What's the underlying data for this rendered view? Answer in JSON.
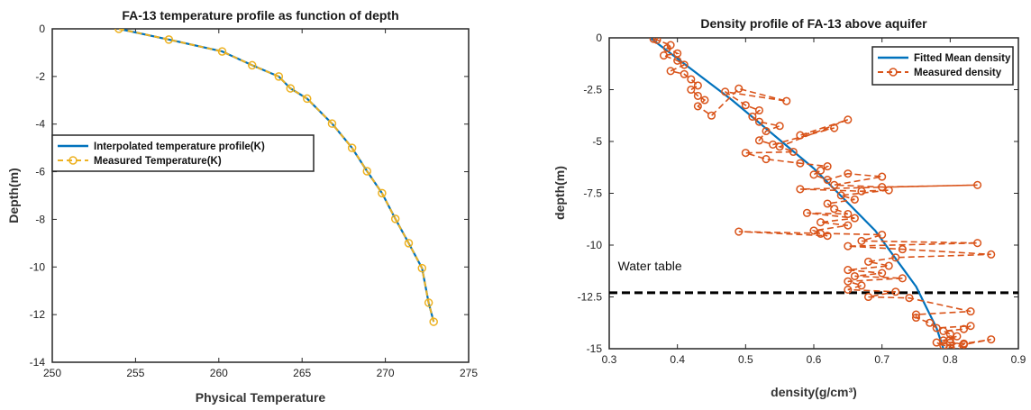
{
  "chart_data": [
    {
      "type": "line",
      "title": "FA-13 temperature profile as function of depth",
      "xlabel": "Physical Temperature",
      "ylabel": "Depth(m)",
      "xlim": [
        250,
        275
      ],
      "ylim": [
        -14,
        0
      ],
      "xticks": [
        250,
        255,
        260,
        265,
        270,
        275
      ],
      "yticks": [
        0,
        -2,
        -4,
        -6,
        -8,
        -10,
        -12,
        -14
      ],
      "legend_position": "middle-left",
      "series": [
        {
          "name": "Interpolated temperature profile(K)",
          "color": "#0072BD",
          "style": "solid",
          "x": [
            254.0,
            257.0,
            260.2,
            262.0,
            263.6,
            264.3,
            265.3,
            266.8,
            268.0,
            268.9,
            269.8,
            270.6,
            271.4,
            272.2,
            272.6,
            272.9
          ],
          "y": [
            0,
            -0.45,
            -0.95,
            -1.53,
            -2.0,
            -2.5,
            -2.93,
            -3.98,
            -5.0,
            -5.98,
            -6.9,
            -7.98,
            -9.0,
            -10.05,
            -11.5,
            -12.3
          ]
        },
        {
          "name": "Measured Temperature(K)",
          "color": "#EDB120",
          "style": "dashed-circle",
          "x": [
            254.0,
            257.0,
            260.2,
            262.0,
            263.6,
            264.3,
            265.3,
            266.8,
            268.0,
            268.9,
            269.8,
            270.6,
            271.4,
            272.2,
            272.6,
            272.9
          ],
          "y": [
            0,
            -0.45,
            -0.95,
            -1.53,
            -2.0,
            -2.5,
            -2.93,
            -3.98,
            -5.0,
            -5.98,
            -6.9,
            -7.98,
            -9.0,
            -10.05,
            -11.5,
            -12.3
          ]
        }
      ]
    },
    {
      "type": "line",
      "title": "Density profile of FA-13 above aquifer",
      "xlabel": "density(g/cm³)",
      "ylabel": "depth(m)",
      "xlim": [
        0.3,
        0.9
      ],
      "ylim": [
        -15,
        0
      ],
      "xticks": [
        0.3,
        0.4,
        0.5,
        0.6,
        0.7,
        0.8,
        0.9
      ],
      "yticks": [
        0,
        -2.5,
        -5,
        -7.5,
        -10,
        -12.5,
        -15
      ],
      "ytick_labels": [
        "0",
        "-2.5",
        "-5",
        "-7.5",
        "-10",
        "-12.5",
        "-15"
      ],
      "legend_position": "top-right",
      "annotations": [
        {
          "text": "Water table",
          "x": 0.31,
          "y": -11.0
        }
      ],
      "water_table_depth": -12.3,
      "series": [
        {
          "name": "Fitted Mean density",
          "color": "#0072BD",
          "style": "solid",
          "x": [
            0.36,
            0.4,
            0.44,
            0.48,
            0.52,
            0.56,
            0.6,
            0.63,
            0.66,
            0.69,
            0.71,
            0.73,
            0.75,
            0.765,
            0.78,
            0.79
          ],
          "y": [
            0,
            -1.0,
            -2.0,
            -3.0,
            -4.1,
            -5.2,
            -6.3,
            -7.3,
            -8.3,
            -9.3,
            -10.2,
            -11.1,
            -12.0,
            -13.0,
            -14.0,
            -15.0
          ]
        },
        {
          "name": "Measured density",
          "color": "#D95319",
          "style": "dashed-circle",
          "x": [
            0.365,
            0.37,
            0.39,
            0.385,
            0.4,
            0.38,
            0.4,
            0.41,
            0.39,
            0.41,
            0.42,
            0.43,
            0.42,
            0.43,
            0.44,
            0.43,
            0.45,
            0.49,
            0.56,
            0.47,
            0.5,
            0.52,
            0.51,
            0.52,
            0.55,
            0.53,
            0.52,
            0.54,
            0.63,
            0.58,
            0.65,
            0.55,
            0.57,
            0.5,
            0.53,
            0.58,
            0.62,
            0.61,
            0.6,
            0.62,
            0.65,
            0.7,
            0.63,
            0.7,
            0.84,
            0.58,
            0.67,
            0.71,
            0.64,
            0.66,
            0.62,
            0.63,
            0.65,
            0.59,
            0.66,
            0.61,
            0.65,
            0.6,
            0.61,
            0.62,
            0.49,
            0.7,
            0.67,
            0.84,
            0.65,
            0.73,
            0.86,
            0.72,
            0.68,
            0.71,
            0.65,
            0.7,
            0.66,
            0.73,
            0.65,
            0.67,
            0.65,
            0.72,
            0.68,
            0.74,
            0.83,
            0.75,
            0.75,
            0.77,
            0.78,
            0.83,
            0.82,
            0.79,
            0.8,
            0.8,
            0.81,
            0.79,
            0.8,
            0.82,
            0.86,
            0.82,
            0.81,
            0.8,
            0.78,
            0.79
          ],
          "y": [
            -0.05,
            -0.1,
            -0.35,
            -0.5,
            -0.75,
            -0.85,
            -1.1,
            -1.3,
            -1.6,
            -1.75,
            -2.0,
            -2.3,
            -2.5,
            -2.8,
            -3.0,
            -3.3,
            -3.75,
            -2.45,
            -3.05,
            -2.6,
            -3.25,
            -3.5,
            -3.8,
            -4.05,
            -4.25,
            -4.5,
            -4.95,
            -5.15,
            -4.35,
            -4.7,
            -3.95,
            -5.25,
            -5.5,
            -5.55,
            -5.85,
            -6.05,
            -6.2,
            -6.4,
            -6.6,
            -6.85,
            -6.55,
            -6.7,
            -7.1,
            -7.2,
            -7.1,
            -7.3,
            -7.4,
            -7.35,
            -7.6,
            -7.8,
            -8.0,
            -8.25,
            -8.5,
            -8.45,
            -8.7,
            -8.9,
            -9.05,
            -9.3,
            -9.45,
            -9.55,
            -9.35,
            -9.5,
            -9.8,
            -9.9,
            -10.05,
            -10.2,
            -10.45,
            -10.6,
            -10.8,
            -11.0,
            -11.2,
            -11.35,
            -11.5,
            -11.6,
            -11.75,
            -11.95,
            -12.15,
            -12.25,
            -12.5,
            -12.55,
            -13.2,
            -13.35,
            -13.5,
            -13.75,
            -14.0,
            -13.9,
            -14.05,
            -14.15,
            -14.3,
            -14.55,
            -14.4,
            -14.6,
            -14.7,
            -14.75,
            -14.55,
            -14.8,
            -14.9,
            -14.95,
            -14.7,
            -14.85
          ]
        }
      ]
    }
  ]
}
